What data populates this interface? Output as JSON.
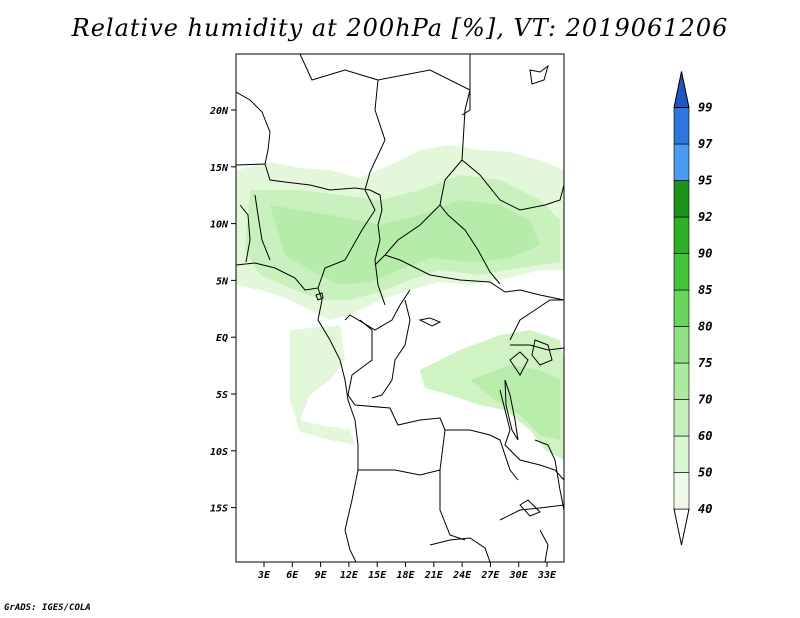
{
  "title": "Relative humidity at 200hPa [%], VT: 2019061206",
  "footer": "GrADS: IGES/COLA",
  "map": {
    "lon_ticks": [
      "3E",
      "6E",
      "9E",
      "12E",
      "15E",
      "18E",
      "21E",
      "24E",
      "27E",
      "30E",
      "33E"
    ],
    "lat_ticks": [
      "20N",
      "15N",
      "10N",
      "5N",
      "EQ",
      "5S",
      "10S",
      "15S"
    ]
  },
  "colorbar": {
    "levels": [
      "40",
      "50",
      "60",
      "70",
      "75",
      "80",
      "85",
      "90",
      "92",
      "95",
      "97",
      "99"
    ],
    "colors": [
      "#eefbea",
      "#d9f5d0",
      "#c3efb8",
      "#acea9f",
      "#8fe083",
      "#6ad55c",
      "#44c43a",
      "#2fae27",
      "#1c931a",
      "#4b9cf0",
      "#2e76dc",
      "#1f56c4"
    ]
  }
}
